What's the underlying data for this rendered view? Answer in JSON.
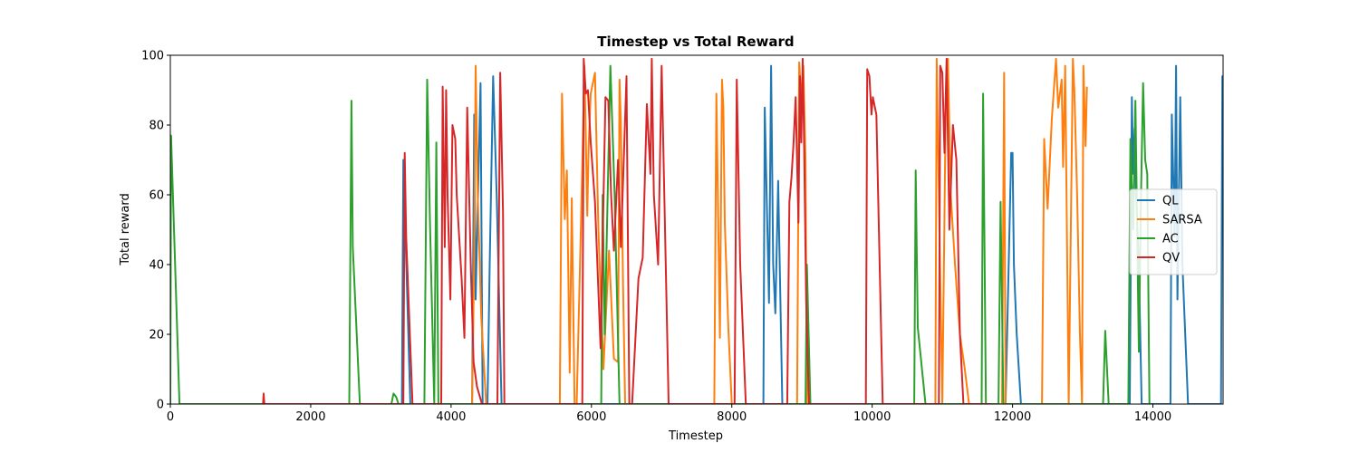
{
  "chart_data": {
    "type": "line",
    "title": "Timestep vs Total Reward",
    "xlabel": "Timestep",
    "ylabel": "Total reward",
    "xlim": [
      0,
      15000
    ],
    "ylim": [
      0,
      100
    ],
    "xticks": [
      0,
      2000,
      4000,
      6000,
      8000,
      10000,
      12000,
      14000
    ],
    "yticks": [
      0,
      20,
      40,
      60,
      80,
      100
    ],
    "xtick_labels": [
      "0",
      "2000",
      "4000",
      "6000",
      "8000",
      "10000",
      "12000",
      "14000"
    ],
    "ytick_labels": [
      "0",
      "20",
      "40",
      "60",
      "80",
      "100"
    ],
    "grid": false,
    "legend_position": "center-right",
    "series": [
      {
        "name": "QL",
        "color": "#1f77b4",
        "x": [
          3300,
          3320,
          3420,
          4300,
          4330,
          4350,
          4420,
          4450,
          4520,
          4550,
          4600,
          4650,
          4720,
          8450,
          8470,
          8530,
          8560,
          8590,
          8620,
          8660,
          8720,
          11900,
          11980,
          12000,
          12020,
          12060,
          12120,
          13670,
          13700,
          13720,
          13740,
          13760,
          13800,
          13840,
          14250,
          14270,
          14310,
          14330,
          14350,
          14390,
          14420,
          14500,
          14970,
          14990,
          15000
        ],
        "y": [
          0,
          70,
          0,
          0,
          83,
          30,
          92,
          0,
          0,
          40,
          94,
          60,
          0,
          0,
          85,
          29,
          97,
          40,
          26,
          64,
          0,
          0,
          72,
          72,
          40,
          20,
          0,
          0,
          88,
          66,
          79,
          60,
          40,
          0,
          0,
          83,
          48,
          97,
          30,
          88,
          40,
          0,
          0,
          94,
          80
        ]
      },
      {
        "name": "SARSA",
        "color": "#ff7f0e",
        "x": [
          4300,
          4330,
          4350,
          4380,
          4430,
          4500,
          5550,
          5580,
          5620,
          5650,
          5690,
          5720,
          5760,
          5790,
          5850,
          5900,
          5940,
          5960,
          5990,
          6050,
          6100,
          6170,
          6250,
          6320,
          6380,
          6400,
          6420,
          6450,
          6480,
          7750,
          7780,
          7830,
          7860,
          7880,
          7900,
          7950,
          8000,
          8930,
          8960,
          8990,
          9020,
          9050,
          9070,
          10900,
          10920,
          10950,
          11000,
          11050,
          11080,
          11120,
          11180,
          11250,
          11320,
          11380,
          11450,
          11850,
          11880,
          11900,
          12420,
          12450,
          12500,
          12560,
          12620,
          12650,
          12700,
          12720,
          12750,
          12800,
          12860,
          12880,
          12920,
          12960,
          12990,
          13010,
          13040,
          13060
        ],
        "y": [
          0,
          42,
          97,
          60,
          25,
          0,
          0,
          89,
          53,
          67,
          9,
          59,
          0,
          0,
          51,
          97,
          54,
          74,
          89,
          95,
          50,
          10,
          44,
          13,
          12,
          93,
          81,
          34,
          0,
          0,
          89,
          19,
          93,
          85,
          52,
          22,
          0,
          0,
          98,
          88,
          97,
          70,
          0,
          0,
          99,
          60,
          0,
          89,
          99,
          60,
          40,
          20,
          10,
          0,
          0,
          0,
          95,
          0,
          0,
          76,
          56,
          82,
          99,
          85,
          93,
          68,
          97,
          0,
          99,
          90,
          60,
          20,
          0,
          97,
          74,
          91
        ]
      },
      {
        "name": "AC",
        "color": "#2ca02c",
        "x": [
          0,
          10,
          130,
          2550,
          2580,
          2600,
          2700,
          3150,
          3180,
          3220,
          3250,
          3620,
          3660,
          3700,
          3760,
          3790,
          3820,
          5510,
          5520,
          6140,
          6160,
          6190,
          6270,
          6330,
          6400,
          9050,
          9070,
          9120,
          10600,
          10620,
          10650,
          10760,
          11560,
          11580,
          11620,
          11800,
          11830,
          11870,
          11890,
          13290,
          13320,
          13370,
          13650,
          13680,
          13720,
          13750,
          13800,
          13830,
          13860,
          13890,
          13920,
          13950
        ],
        "y": [
          0,
          77,
          0,
          0,
          87,
          45,
          0,
          0,
          3,
          2,
          0,
          0,
          93,
          52,
          0,
          75,
          0,
          0,
          0,
          0,
          60,
          20,
          97,
          60,
          0,
          0,
          40,
          0,
          0,
          67,
          22,
          0,
          0,
          89,
          0,
          0,
          58,
          0,
          0,
          0,
          21,
          0,
          0,
          76,
          50,
          87,
          15,
          60,
          92,
          70,
          66,
          0
        ]
      },
      {
        "name": "QV",
        "color": "#d62728",
        "x": [
          1320,
          1330,
          1340,
          3320,
          3340,
          3360,
          3450,
          3860,
          3880,
          3910,
          3930,
          3950,
          3990,
          4020,
          4060,
          4080,
          4150,
          4190,
          4230,
          4280,
          4320,
          4370,
          4440,
          4660,
          4700,
          4740,
          4760,
          5870,
          5890,
          5920,
          5950,
          5990,
          6050,
          6130,
          6200,
          6240,
          6280,
          6320,
          6380,
          6420,
          6500,
          6540,
          6580,
          6670,
          6730,
          6790,
          6840,
          6860,
          6890,
          6950,
          7000,
          7100,
          7200,
          8040,
          8070,
          8120,
          8200,
          8790,
          8820,
          8850,
          8880,
          8910,
          8950,
          8970,
          8990,
          9010,
          9030,
          9060,
          9100,
          9910,
          9930,
          9960,
          9990,
          10010,
          10060,
          10150,
          10950,
          10970,
          11000,
          11030,
          11060,
          11100,
          11150,
          11200,
          11250,
          11300,
          11400,
          11480,
          11560,
          11640,
          11700
        ],
        "y": [
          0,
          3,
          0,
          0,
          72,
          48,
          0,
          0,
          91,
          45,
          90,
          60,
          30,
          80,
          76,
          60,
          36,
          19,
          85,
          40,
          12,
          5,
          0,
          0,
          95,
          55,
          0,
          0,
          99,
          89,
          90,
          75,
          58,
          16,
          88,
          87,
          60,
          44,
          70,
          45,
          94,
          0,
          0,
          36,
          42,
          86,
          66,
          99,
          60,
          40,
          97,
          0,
          0,
          0,
          93,
          40,
          0,
          0,
          58,
          65,
          75,
          88,
          52,
          94,
          75,
          99,
          75,
          30,
          0,
          0,
          96,
          94,
          83,
          88,
          83,
          0,
          0,
          97,
          95,
          72,
          99,
          50,
          80,
          70,
          20,
          0,
          0,
          0,
          0,
          0,
          0
        ]
      }
    ]
  }
}
